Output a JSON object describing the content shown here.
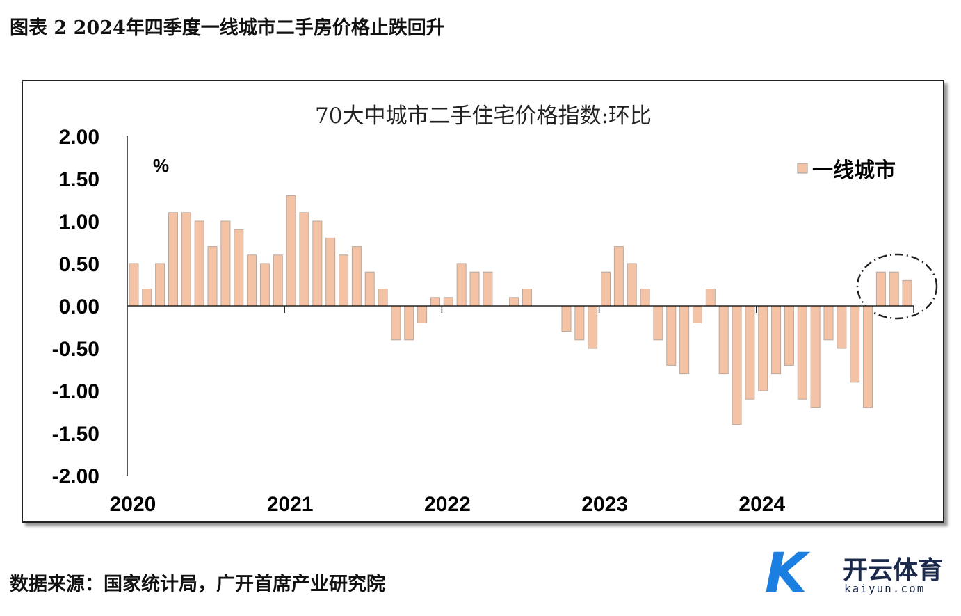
{
  "figure_title": "图表 2 2024年四季度一线城市二手房价格止跌回升",
  "source": "数据来源：国家统计局，广开首席产业研究院",
  "watermark": {
    "cn": "开云体育",
    "en": "kaiyun.com"
  },
  "chart_data": {
    "type": "bar",
    "title": "70大中城市二手住宅价格指数:环比",
    "ylabel": "%",
    "ylim": [
      -2,
      2
    ],
    "yticks": [
      "2.00",
      "1.50",
      "1.00",
      "0.50",
      "0.00",
      "-0.50",
      "-1.00",
      "-1.50",
      "-2.00"
    ],
    "ytick_values": [
      2,
      1.5,
      1,
      0.5,
      0,
      -0.5,
      -1,
      -1.5,
      -2
    ],
    "xticks": [
      "2020",
      "2021",
      "2022",
      "2023",
      "2024"
    ],
    "legend": "top-right",
    "bar_color": "#f4c3a6",
    "series": [
      {
        "name": "一线城市",
        "values": [
          0.5,
          0.2,
          0.5,
          1.1,
          1.1,
          1.0,
          0.7,
          1.0,
          0.9,
          0.6,
          0.5,
          0.6,
          1.3,
          1.1,
          1.0,
          0.8,
          0.6,
          0.7,
          0.4,
          0.2,
          -0.4,
          -0.4,
          -0.2,
          0.1,
          0.1,
          0.5,
          0.4,
          0.4,
          0,
          0.1,
          0.2,
          0,
          0,
          -0.3,
          -0.4,
          -0.5,
          0.4,
          0.7,
          0.5,
          0.2,
          -0.4,
          -0.7,
          -0.8,
          -0.2,
          0.2,
          -0.8,
          -1.4,
          -1.1,
          -1.0,
          -0.8,
          -0.7,
          -1.1,
          -1.2,
          -0.4,
          -0.5,
          -0.9,
          -1.2,
          0.4,
          0.4,
          0.3
        ]
      }
    ]
  }
}
